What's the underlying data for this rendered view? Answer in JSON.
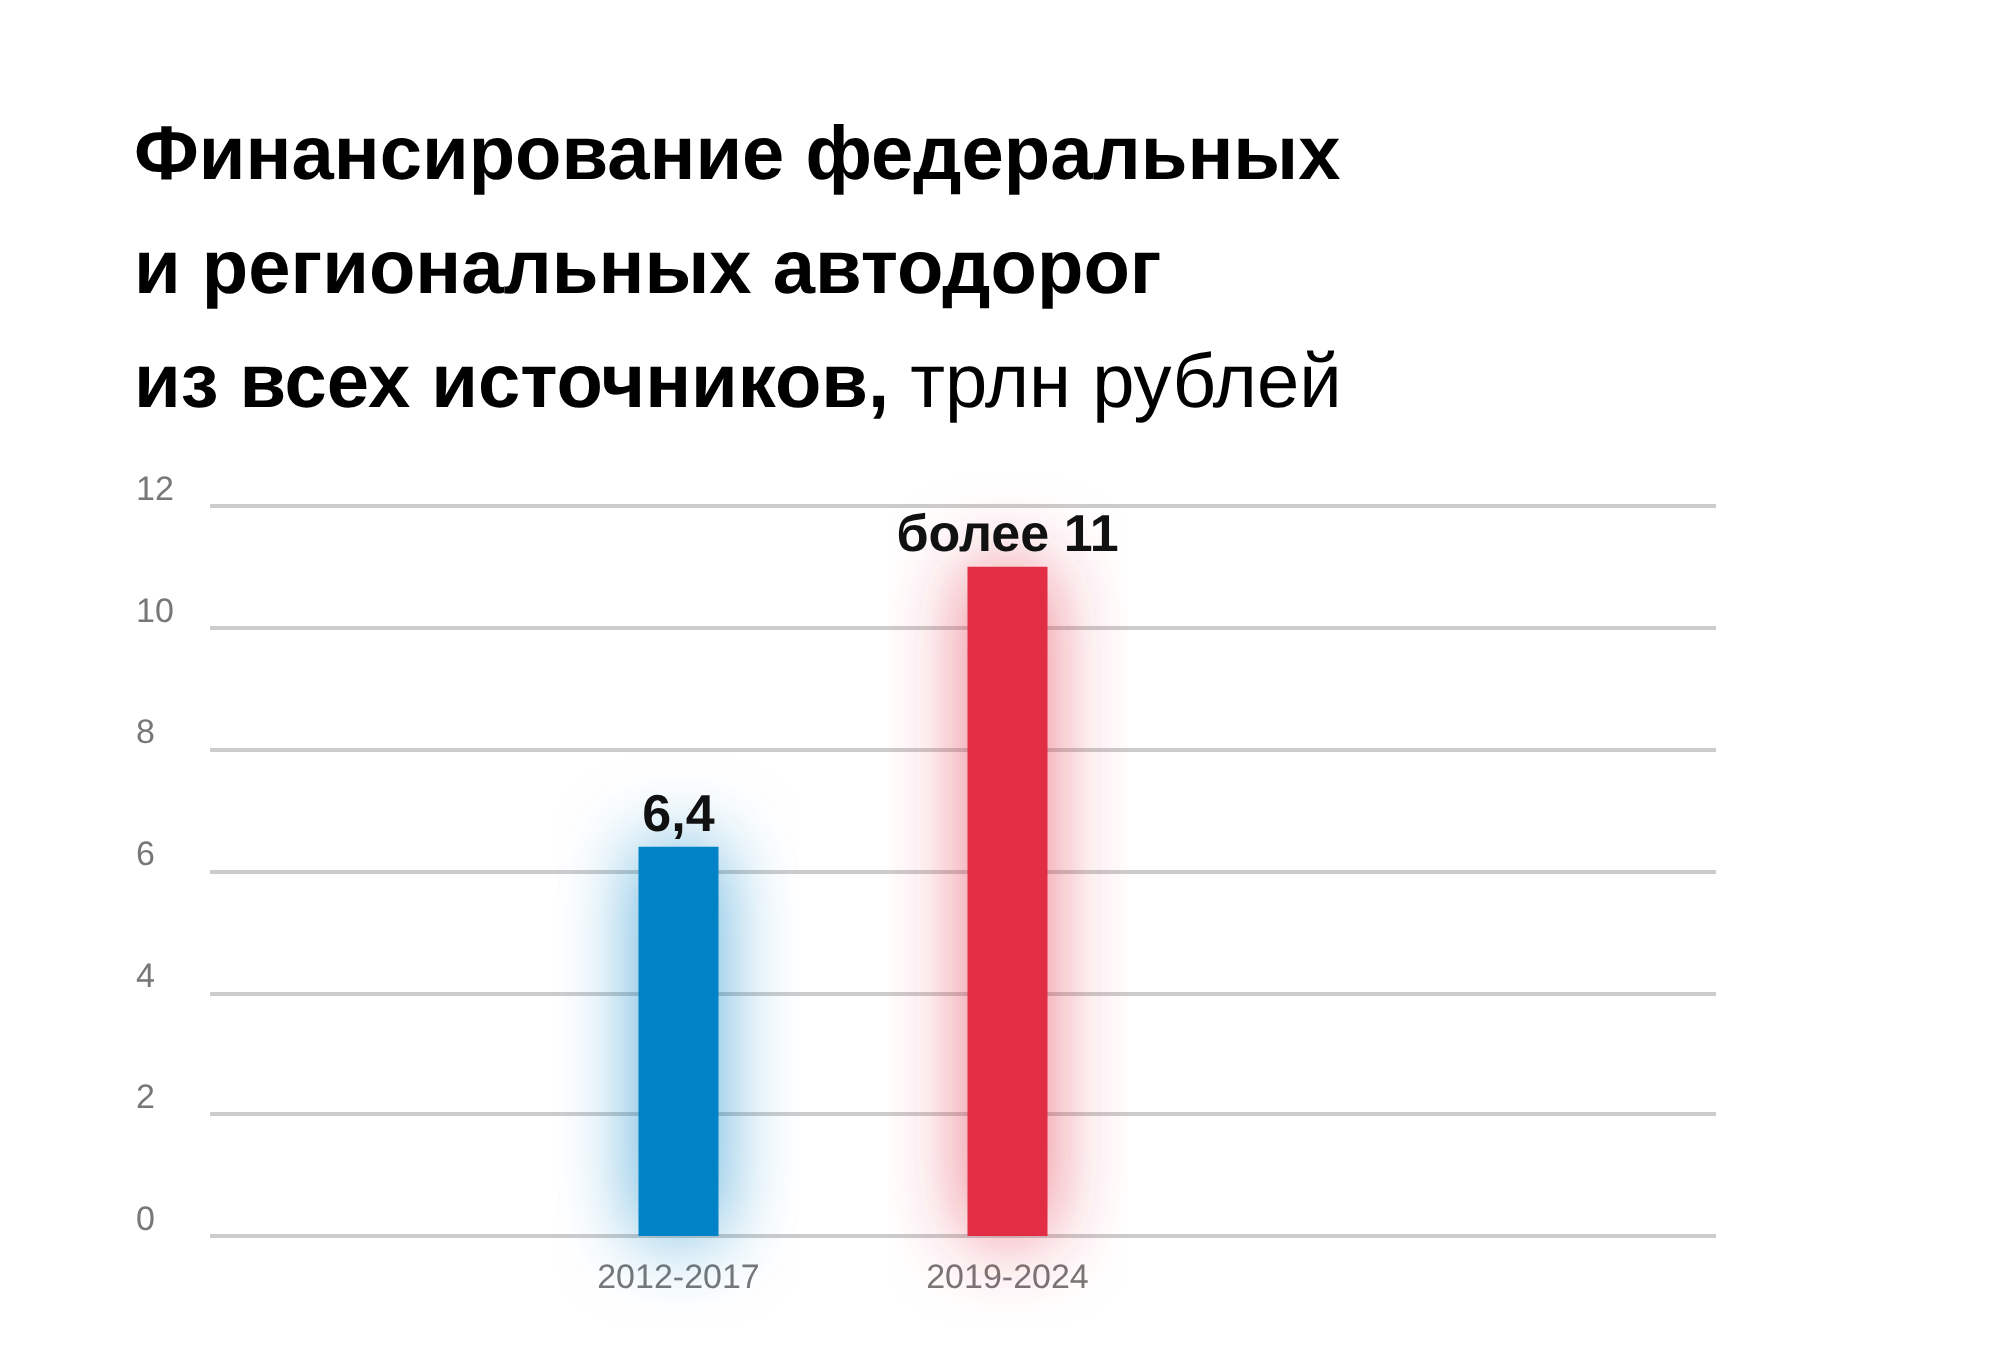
{
  "chart_data": {
    "type": "bar",
    "title": "Финансирование федеральных\nи региональных автодорог\nиз всех источников, трлн рублей",
    "categories": [
      "2012-2017",
      "2019-2024"
    ],
    "values": [
      6.4,
      11
    ],
    "colors": [
      "#0082c6",
      "#e22d45"
    ],
    "value_labels": [
      "6,4",
      "более 11"
    ],
    "ylim": [
      0,
      12
    ],
    "yticks": [
      0,
      2,
      4,
      6,
      8,
      10,
      12
    ],
    "grid": "y"
  }
}
